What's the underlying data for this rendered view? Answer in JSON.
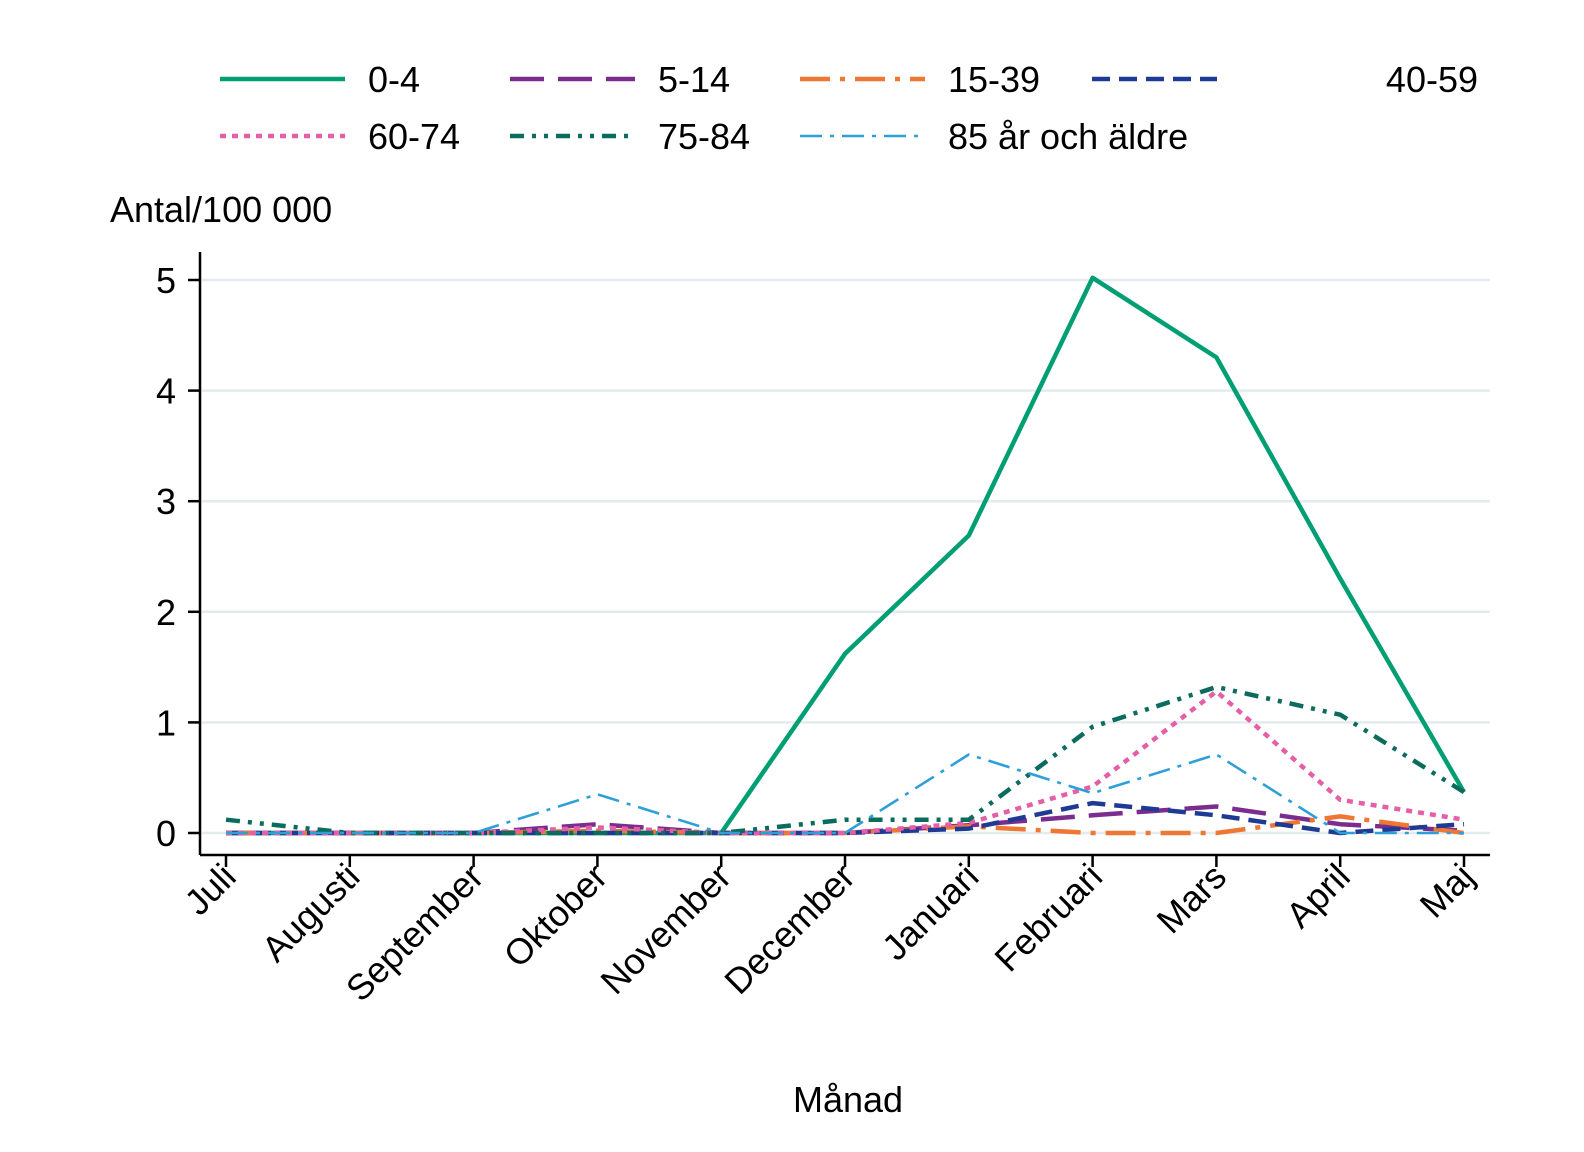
{
  "chart_data": {
    "type": "line",
    "title": "",
    "xlabel": "Månad",
    "ylabel": "Antal/100 000",
    "ylim": [
      0,
      5.25
    ],
    "yticks": [
      0,
      1,
      2,
      3,
      4,
      5
    ],
    "grid": true,
    "legend_position": "top",
    "categories": [
      "Juli",
      "Augusti",
      "September",
      "Oktober",
      "November",
      "December",
      "Januari",
      "Februari",
      "Mars",
      "April",
      "Maj"
    ],
    "series": [
      {
        "name": "0-4",
        "color": "#009E73",
        "dash": "solid",
        "values": [
          0,
          0,
          0,
          0,
          0,
          1.62,
          2.69,
          5.02,
          4.3,
          2.3,
          0.37
        ]
      },
      {
        "name": "5-14",
        "color": "#7B2D8E",
        "dash": "longdash",
        "values": [
          0,
          0,
          0,
          0.08,
          0,
          0,
          0.07,
          0.16,
          0.24,
          0.08,
          0.02
        ]
      },
      {
        "name": "15-39",
        "color": "#EE7733",
        "dash": "longdashdot",
        "values": [
          0,
          0,
          0,
          0.02,
          0,
          0,
          0.06,
          0,
          0,
          0.15,
          0
        ]
      },
      {
        "name": "40-59",
        "color": "#1F3A93",
        "dash": "dash",
        "values": [
          0,
          0,
          0,
          0,
          0,
          0,
          0.04,
          0.27,
          0.16,
          0,
          0.08
        ]
      },
      {
        "name": "60-74",
        "color": "#E45FA6",
        "dash": "dot",
        "values": [
          0,
          0,
          0,
          0.05,
          0,
          0,
          0.09,
          0.42,
          1.28,
          0.3,
          0.12
        ]
      },
      {
        "name": "75-84",
        "color": "#0B6B5C",
        "dash": "dashdotdot",
        "values": [
          0.12,
          0,
          0,
          0,
          0,
          0.12,
          0.12,
          0.96,
          1.32,
          1.07,
          0.37
        ]
      },
      {
        "name": "85 år och äldre",
        "color": "#2E9FD9",
        "dash": "dashdot",
        "values": [
          0,
          0,
          0,
          0.35,
          0,
          0,
          0.71,
          0.36,
          0.71,
          0,
          0
        ]
      }
    ]
  }
}
